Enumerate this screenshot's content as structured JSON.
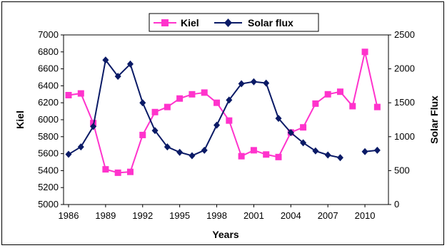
{
  "chart_data": {
    "type": "line",
    "title": "",
    "xlabel": "Years",
    "ylabel_left": "Kiel",
    "ylabel_right": "Solar Flux",
    "x_ticks": [
      "1986",
      "1989",
      "1992",
      "1995",
      "1998",
      "2001",
      "2004",
      "2007",
      "2010"
    ],
    "xlim": [
      1986,
      2011.5
    ],
    "ylim_left": [
      5000,
      7000
    ],
    "ylim_right": [
      0,
      2500
    ],
    "y_ticks_left": [
      "7000",
      "6800",
      "6600",
      "6400",
      "6200",
      "6000",
      "5800",
      "5600",
      "5400",
      "5200",
      "5000"
    ],
    "y_ticks_right": [
      "2500",
      "2000",
      "1500",
      "1000",
      "500",
      "0"
    ],
    "grid": false,
    "legend_position": "top-center",
    "series": [
      {
        "name": "Kiel",
        "axis": "left",
        "color": "#ff33cc",
        "marker": "square",
        "x": [
          1986,
          1987,
          1988,
          1989,
          1990,
          1991,
          1992,
          1993,
          1994,
          1995,
          1996,
          1997,
          1998,
          1999,
          2000,
          2001,
          2002,
          2003,
          2004,
          2005,
          2006,
          2007,
          2008,
          2009,
          2010,
          2011
        ],
        "y": [
          6290,
          6310,
          5960,
          5415,
          5375,
          5385,
          5820,
          6090,
          6150,
          6250,
          6300,
          6320,
          6200,
          5990,
          5570,
          5640,
          5590,
          5560,
          5850,
          5910,
          6190,
          6300,
          6330,
          6160,
          6800,
          6150
        ]
      },
      {
        "name": "Solar flux",
        "axis": "right",
        "color": "#0a1a66",
        "marker": "diamond",
        "x": [
          1986,
          1987,
          1988,
          1989,
          1990,
          1991,
          1992,
          1993,
          1994,
          1995,
          1996,
          1997,
          1998,
          1999,
          2000,
          2001,
          2002,
          2003,
          2004,
          2005,
          2006,
          2007,
          2008,
          2009,
          2010,
          2011
        ],
        "y": [
          740,
          850,
          1150,
          2130,
          1890,
          2070,
          1500,
          1090,
          850,
          770,
          720,
          800,
          1170,
          1540,
          1780,
          1810,
          1790,
          1270,
          1060,
          910,
          790,
          730,
          690,
          null,
          780,
          800
        ]
      }
    ]
  }
}
